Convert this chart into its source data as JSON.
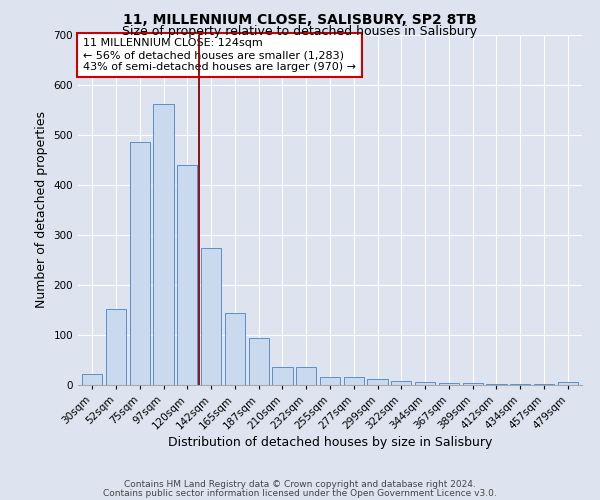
{
  "title": "11, MILLENNIUM CLOSE, SALISBURY, SP2 8TB",
  "subtitle": "Size of property relative to detached houses in Salisbury",
  "xlabel": "Distribution of detached houses by size in Salisbury",
  "ylabel": "Number of detached properties",
  "categories": [
    "30sqm",
    "52sqm",
    "75sqm",
    "97sqm",
    "120sqm",
    "142sqm",
    "165sqm",
    "187sqm",
    "210sqm",
    "232sqm",
    "255sqm",
    "277sqm",
    "299sqm",
    "322sqm",
    "344sqm",
    "367sqm",
    "389sqm",
    "412sqm",
    "434sqm",
    "457sqm",
    "479sqm"
  ],
  "values": [
    22,
    152,
    487,
    563,
    441,
    275,
    145,
    95,
    37,
    36,
    16,
    17,
    12,
    9,
    6,
    5,
    5,
    3,
    3,
    2,
    7
  ],
  "bar_color": "#c9d9ee",
  "bar_edge_color": "#5b8fc9",
  "vline_x_idx": 4.5,
  "vline_color": "#8b0000",
  "annotation_line1": "11 MILLENNIUM CLOSE: 124sqm",
  "annotation_line2": "← 56% of detached houses are smaller (1,283)",
  "annotation_line3": "43% of semi-detached houses are larger (970) →",
  "annotation_box_color": "white",
  "annotation_box_edge_color": "#cc0000",
  "ylim": [
    0,
    700
  ],
  "yticks": [
    0,
    100,
    200,
    300,
    400,
    500,
    600,
    700
  ],
  "footer1": "Contains HM Land Registry data © Crown copyright and database right 2024.",
  "footer2": "Contains public sector information licensed under the Open Government Licence v3.0.",
  "bg_color": "#dde4f0",
  "plot_bg_color": "#dde4f0",
  "grid_color": "#ffffff",
  "title_fontsize": 10,
  "subtitle_fontsize": 9,
  "axis_label_fontsize": 9,
  "tick_fontsize": 7.5,
  "annotation_fontsize": 8,
  "footer_fontsize": 6.5
}
